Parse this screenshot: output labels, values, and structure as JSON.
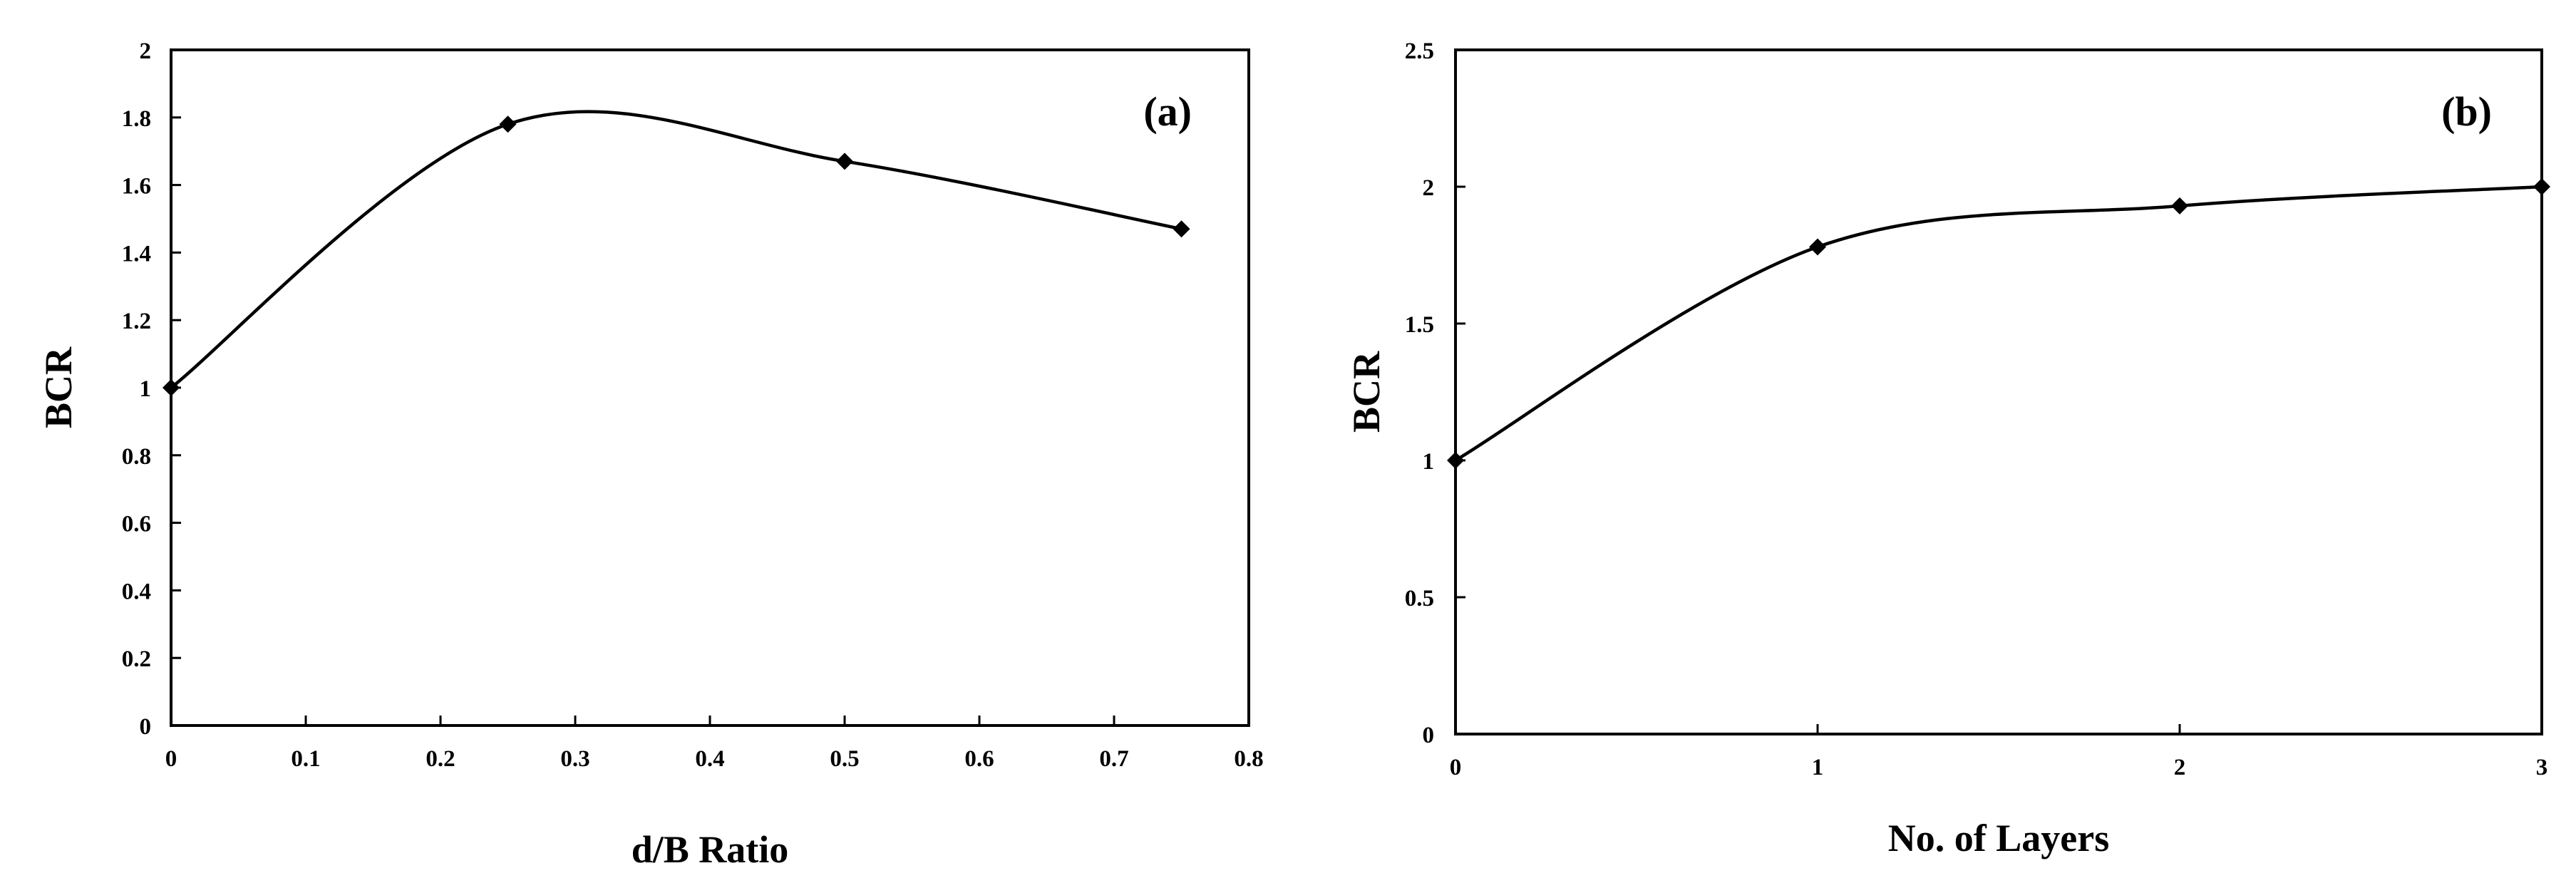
{
  "chart_data": [
    {
      "type": "line",
      "panel_label": "(a)",
      "xlabel": "d/B Ratio",
      "ylabel": "BCR",
      "xlim": [
        0,
        0.8
      ],
      "ylim": [
        0,
        2
      ],
      "x_ticks": [
        0,
        0.1,
        0.2,
        0.3,
        0.4,
        0.5,
        0.6,
        0.7,
        0.8
      ],
      "y_ticks": [
        0,
        0.2,
        0.4,
        0.6,
        0.8,
        1,
        1.2,
        1.4,
        1.6,
        1.8,
        2
      ],
      "x_tick_labels": [
        "0",
        "0.1",
        "0.2",
        "0.3",
        "0.4",
        "0.5",
        "0.6",
        "0.7",
        "0.8"
      ],
      "y_tick_labels": [
        "0",
        "0.2",
        "0.4",
        "0.6",
        "0.8",
        "1",
        "1.2",
        "1.4",
        "1.6",
        "1.8",
        "2"
      ],
      "grid": false,
      "marker": "diamond",
      "series": [
        {
          "x": [
            0,
            0.25,
            0.5,
            0.75
          ],
          "y": [
            1.0,
            1.78,
            1.67,
            1.47
          ]
        }
      ]
    },
    {
      "type": "line",
      "panel_label": "(b)",
      "xlabel": "No. of Layers",
      "ylabel": "BCR",
      "xlim": [
        0,
        3
      ],
      "ylim": [
        0,
        2.5
      ],
      "x_ticks": [
        0,
        1,
        2,
        3
      ],
      "y_ticks": [
        0,
        0.5,
        1,
        1.5,
        2,
        2.5
      ],
      "x_tick_labels": [
        "0",
        "1",
        "2",
        "3"
      ],
      "y_tick_labels": [
        "0",
        "0.5",
        "1",
        "1.5",
        "2",
        "2.5"
      ],
      "grid": false,
      "marker": "diamond",
      "series": [
        {
          "x": [
            0,
            1,
            2,
            3
          ],
          "y": [
            1.0,
            1.78,
            1.93,
            2.0
          ]
        }
      ]
    }
  ]
}
